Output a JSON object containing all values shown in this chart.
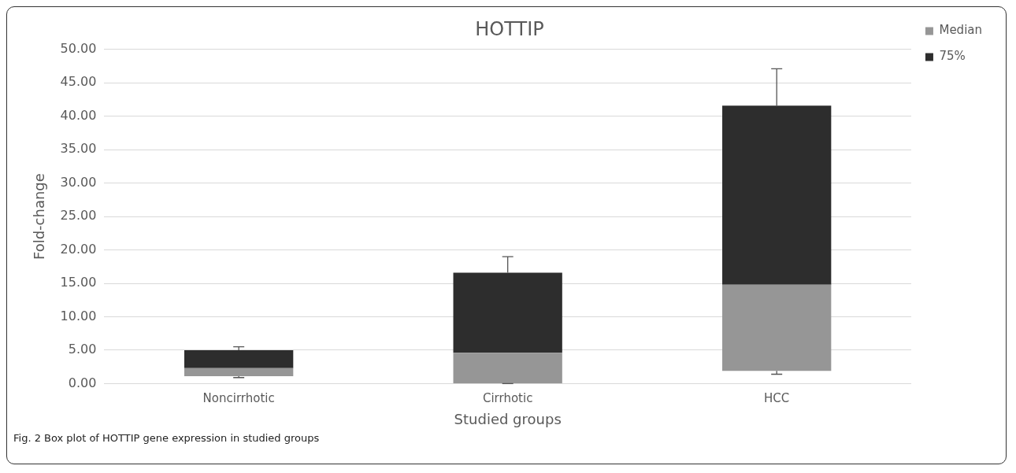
{
  "chart_data": {
    "type": "bar",
    "title": "HOTTIP",
    "xlabel": "Studied groups",
    "ylabel": "Fold-change",
    "categories": [
      "Noncirrhotic",
      "Cirrhotic",
      "HCC"
    ],
    "stacked": true,
    "series": [
      {
        "name": "Median",
        "color": "#969696",
        "base": [
          1.1,
          0,
          1.9
        ],
        "values": [
          1.2,
          4.6,
          12.9
        ],
        "errors": [
          [
            0.9,
            1.1
          ],
          [
            0,
            0
          ],
          [
            1.4,
            1.9
          ]
        ]
      },
      {
        "name": "75%",
        "color": "#2d2d2d",
        "values": [
          2.7,
          12.0,
          26.8
        ],
        "errors": [
          [
            5.0,
            5.5
          ],
          [
            16.6,
            19.0
          ],
          [
            41.6,
            47.1
          ]
        ]
      }
    ],
    "ylim": [
      0,
      50
    ],
    "yticks": [
      {
        "value": 0,
        "label": "0.00"
      },
      {
        "value": 5,
        "label": "5.00"
      },
      {
        "value": 10,
        "label": "10.00"
      },
      {
        "value": 15,
        "label": "15.00"
      },
      {
        "value": 20,
        "label": "20.00"
      },
      {
        "value": 25,
        "label": "25.00"
      },
      {
        "value": 30,
        "label": "30.00"
      },
      {
        "value": 35,
        "label": "35.00"
      },
      {
        "value": 40,
        "label": "40.00"
      },
      {
        "value": 45,
        "label": "45.00"
      },
      {
        "value": 50,
        "label": "50.00"
      }
    ],
    "grid": "y",
    "legend": "top right",
    "annotations": [
      "Fig. 2 Box plot of HOTTIP gene expression in studied groups"
    ]
  }
}
